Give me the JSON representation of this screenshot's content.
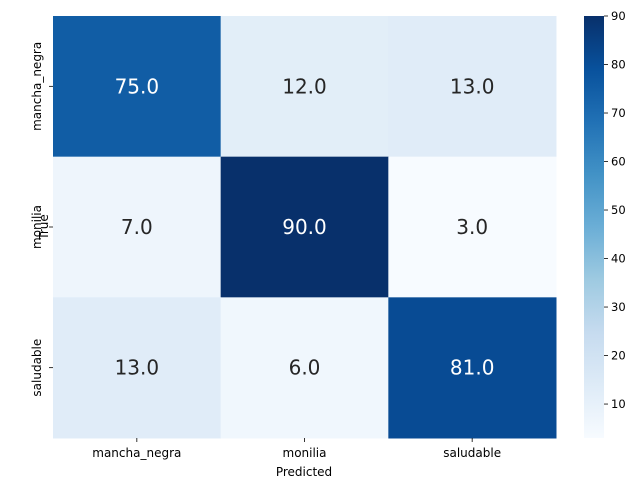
{
  "chart_data": {
    "type": "heatmap",
    "x_categories": [
      "mancha_negra",
      "monilia",
      "saludable"
    ],
    "y_categories": [
      "mancha_negra",
      "monilia",
      "saludable"
    ],
    "values": [
      [
        75.0,
        12.0,
        13.0
      ],
      [
        7.0,
        90.0,
        3.0
      ],
      [
        13.0,
        6.0,
        81.0
      ]
    ],
    "cell_labels": [
      [
        "75.0",
        "12.0",
        "13.0"
      ],
      [
        "7.0",
        "90.0",
        "3.0"
      ],
      [
        "13.0",
        "6.0",
        "81.0"
      ]
    ],
    "xlabel": "Predicted",
    "ylabel": "True",
    "colormap": "Blues",
    "color_range": [
      3,
      90
    ],
    "colorbar_ticks": [
      10,
      20,
      30,
      40,
      50,
      60,
      70,
      80,
      90
    ],
    "grid": false,
    "colors": {
      "low": "#f7fbff",
      "mid": "#6baed6",
      "high": "#08306b",
      "text_light": "#ffffff",
      "text_dark": "#262626"
    }
  }
}
